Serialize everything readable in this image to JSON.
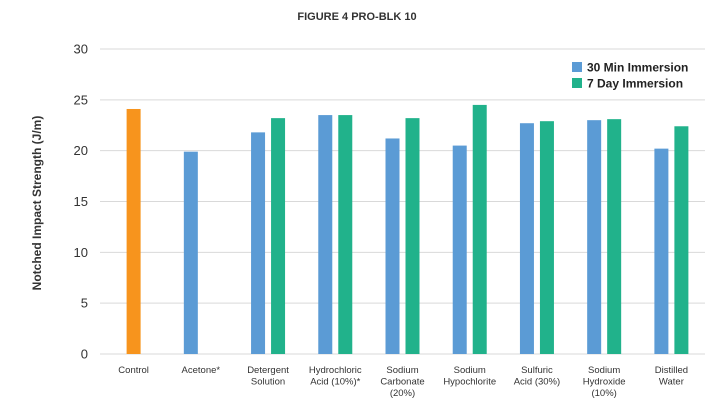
{
  "chart_data": {
    "type": "bar",
    "title": "FIGURE 4 PRO-BLK 10",
    "ylabel": "Notched Impact Strength (J/m)",
    "xlabel": "",
    "ylim": [
      0,
      30
    ],
    "yticks": [
      0,
      5,
      10,
      15,
      20,
      25,
      30
    ],
    "grid": true,
    "legend_position": "top-right",
    "categories": [
      [
        "Control"
      ],
      [
        "Acetone*"
      ],
      [
        "Detergent",
        "Solution"
      ],
      [
        "Hydrochloric",
        "Acid (10%)*"
      ],
      [
        "Sodium",
        "Carbonate",
        "(20%)"
      ],
      [
        "Sodium",
        "Hypochlorite"
      ],
      [
        "Sulfuric",
        "Acid (30%)"
      ],
      [
        "Sodium",
        "Hydroxide",
        "(10%)"
      ],
      [
        "Distilled",
        "Water"
      ]
    ],
    "control": {
      "category_index": 0,
      "value": 24.1,
      "color": "#f7941d"
    },
    "series": [
      {
        "name": "30 Min Immersion",
        "color": "#5b9bd5",
        "values": [
          null,
          19.9,
          21.8,
          23.5,
          21.2,
          20.5,
          22.7,
          23.0,
          20.2
        ]
      },
      {
        "name": "7 Day Immersion",
        "color": "#21b28b",
        "values": [
          null,
          null,
          23.2,
          23.5,
          23.2,
          24.5,
          22.9,
          23.1,
          22.4
        ]
      }
    ]
  }
}
